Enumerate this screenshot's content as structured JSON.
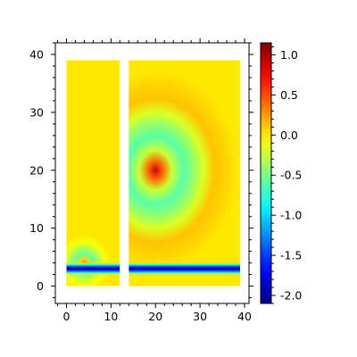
{
  "chart_data": {
    "type": "heatmap",
    "title": "",
    "xlabel": "",
    "ylabel": "",
    "xlim": [
      -2.5,
      41
    ],
    "ylim": [
      -3,
      42
    ],
    "x_ticks": [
      0,
      10,
      20,
      30,
      40
    ],
    "y_ticks": [
      0,
      10,
      20,
      30,
      40
    ],
    "grid": false,
    "panels": [
      {
        "name": "left-panel",
        "x_range": [
          0,
          12
        ],
        "y_range": [
          0,
          39
        ]
      },
      {
        "name": "right-panel",
        "x_range": [
          14,
          39
        ],
        "y_range": [
          0,
          39
        ]
      }
    ],
    "features": [
      {
        "kind": "source",
        "x": 20,
        "y": 20,
        "peak_value": 0.9,
        "min_value": -0.6
      },
      {
        "kind": "source",
        "x": 4,
        "y": 4,
        "peak_value": 0.3,
        "min_value": -0.55
      },
      {
        "kind": "horizontal-band",
        "y": 3,
        "x_range": [
          0,
          39
        ],
        "value": -2.0
      }
    ],
    "background_value": 0.0,
    "colorbar": {
      "colormap": "jet",
      "min": -2.1,
      "max": 1.15,
      "ticks": [
        1.0,
        0.5,
        0.0,
        -0.5,
        -1.0,
        -1.5,
        -2.0
      ],
      "tick_labels": [
        "1.0",
        "0.5",
        "0.0",
        "-0.5",
        "-1.0",
        "-1.5",
        "-2.0"
      ]
    }
  }
}
